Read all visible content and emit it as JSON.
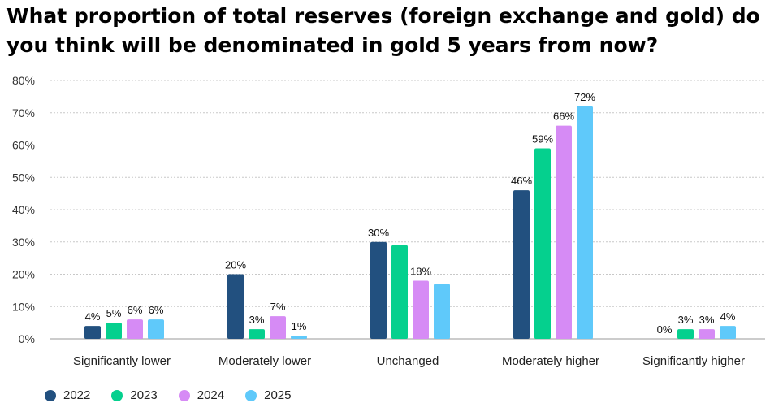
{
  "chart_data": {
    "type": "bar",
    "title": "What proportion of total reserves (foreign exchange and gold) do you think will be denominated in gold 5 years from now?",
    "categories": [
      "Significantly lower",
      "Moderately lower",
      "Unchanged",
      "Moderately higher",
      "Significantly higher"
    ],
    "series": [
      {
        "name": "2022",
        "color": "#22507f",
        "values": [
          4,
          20,
          30,
          46,
          0
        ],
        "labels": [
          "4%",
          "20%",
          "30%",
          "46%",
          "0%"
        ]
      },
      {
        "name": "2023",
        "color": "#05d08e",
        "values": [
          5,
          3,
          29,
          59,
          3
        ],
        "labels": [
          "5%",
          "3%",
          "",
          "59%",
          "3%"
        ]
      },
      {
        "name": "2024",
        "color": "#d68bf5",
        "values": [
          6,
          7,
          18,
          66,
          3
        ],
        "labels": [
          "6%",
          "7%",
          "18%",
          "66%",
          "3%"
        ]
      },
      {
        "name": "2025",
        "color": "#5fc9fa",
        "values": [
          6,
          1,
          17,
          72,
          4
        ],
        "labels": [
          "6%",
          "1%",
          "",
          "72%",
          "4%"
        ]
      }
    ],
    "ylim": [
      0,
      80
    ],
    "yticks": [
      "0%",
      "10%",
      "20%",
      "30%",
      "40%",
      "50%",
      "60%",
      "70%",
      "80%"
    ],
    "grid": true,
    "legend": "bottom-left"
  }
}
